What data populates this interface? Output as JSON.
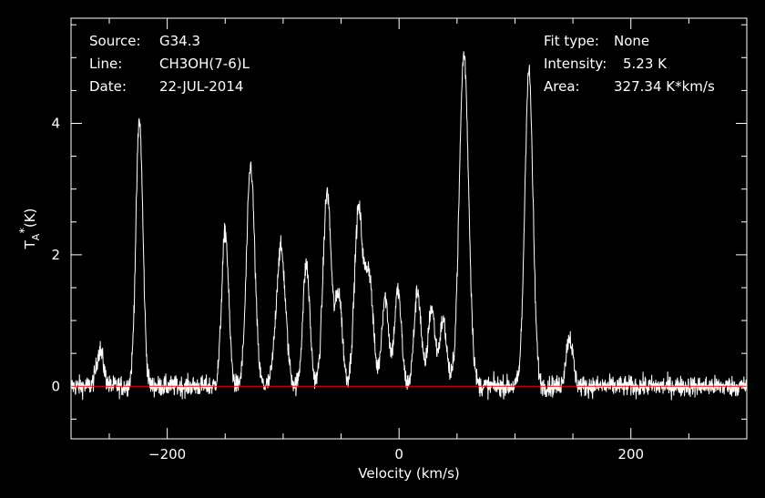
{
  "chart_data": {
    "type": "line",
    "xlabel": "Velocity (km/s)",
    "ylabel": "T",
    "ylabel_sub": "A",
    "ylabel_sup": "*",
    "ylabel_unit": "(K)",
    "xlim": [
      -283,
      300
    ],
    "ylim": [
      -0.8,
      5.6
    ],
    "xticks": [
      -200,
      0,
      200
    ],
    "yticks": [
      0,
      2,
      4
    ],
    "baseline": 0,
    "baseline_color": "#ff0000",
    "line_color": "#ffffff",
    "background": "#000000",
    "noise_rms": 0.08,
    "peaks": [
      {
        "v": -258,
        "amp": 0.55,
        "w": 3
      },
      {
        "v": -224,
        "amp": 4.05,
        "w": 3
      },
      {
        "v": -150,
        "amp": 2.35,
        "w": 3
      },
      {
        "v": -128,
        "amp": 3.35,
        "w": 3.5
      },
      {
        "v": -102,
        "amp": 2.1,
        "w": 4
      },
      {
        "v": -80,
        "amp": 1.85,
        "w": 3
      },
      {
        "v": -62,
        "amp": 2.95,
        "w": 3.5
      },
      {
        "v": -52,
        "amp": 1.4,
        "w": 3
      },
      {
        "v": -35,
        "amp": 2.65,
        "w": 3.5
      },
      {
        "v": -26,
        "amp": 1.7,
        "w": 3.5
      },
      {
        "v": -12,
        "amp": 1.35,
        "w": 3
      },
      {
        "v": -1,
        "amp": 1.45,
        "w": 3
      },
      {
        "v": 16,
        "amp": 1.45,
        "w": 3
      },
      {
        "v": 28,
        "amp": 1.2,
        "w": 3
      },
      {
        "v": 38,
        "amp": 1.0,
        "w": 3
      },
      {
        "v": 56,
        "amp": 5.05,
        "w": 4
      },
      {
        "v": 112,
        "amp": 4.8,
        "w": 3.5
      },
      {
        "v": 147,
        "amp": 0.75,
        "w": 3
      }
    ]
  },
  "info_left": [
    {
      "label": "Source:",
      "value": "G34.3"
    },
    {
      "label": "Line:",
      "value": "CH3OH(7-6)L"
    },
    {
      "label": "Date:",
      "value": "22-JUL-2014"
    }
  ],
  "info_right": [
    {
      "label": "Fit type:",
      "value": "None"
    },
    {
      "label": "Intensity:",
      "value": "5.23 K"
    },
    {
      "label": "Area:",
      "value": "327.34 K*km/s"
    }
  ]
}
